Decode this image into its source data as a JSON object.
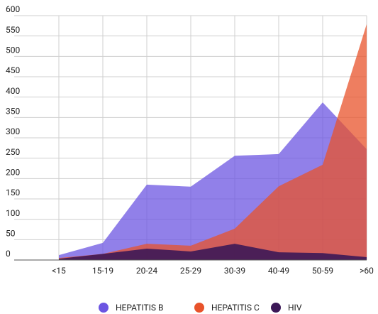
{
  "chart_data": {
    "type": "area",
    "categories": [
      "<15",
      "15-19",
      "20-24",
      "25-29",
      "30-39",
      "40-49",
      "50-59",
      ">60"
    ],
    "series": [
      {
        "name": "HEPATITIS B",
        "color": "#6c55e2",
        "values": [
          12,
          42,
          185,
          180,
          256,
          260,
          387,
          272
        ]
      },
      {
        "name": "HEPATITIS C",
        "color": "#e8532b",
        "values": [
          5,
          15,
          40,
          35,
          77,
          181,
          234,
          579
        ]
      },
      {
        "name": "HIV",
        "color": "#3c1857",
        "values": [
          3,
          15,
          28,
          21,
          40,
          19,
          17,
          7
        ]
      }
    ],
    "ylim": [
      0,
      600
    ],
    "yticks": [
      0,
      50,
      100,
      150,
      200,
      250,
      300,
      350,
      400,
      450,
      500,
      550,
      600
    ],
    "grid": true,
    "legend": "bottom"
  }
}
